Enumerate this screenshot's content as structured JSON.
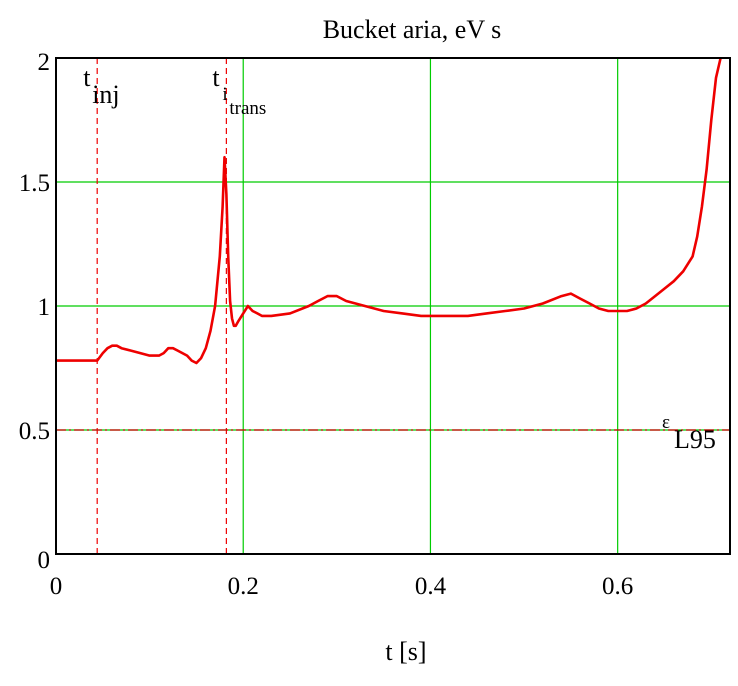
{
  "chart_data": {
    "type": "line",
    "title": "Bucket aria, eV s",
    "xlabel": "t [s]",
    "ylabel": "",
    "xlim": [
      0,
      0.72
    ],
    "ylim": [
      0,
      2
    ],
    "x_ticks": [
      0,
      0.2,
      0.4,
      0.6
    ],
    "x_tick_labels": [
      "0",
      "0.2",
      "0.4",
      "0.6"
    ],
    "y_ticks": [
      0,
      0.5,
      1,
      1.5,
      2
    ],
    "y_tick_labels": [
      "0",
      "0.5",
      "1",
      "1.5",
      "2"
    ],
    "grid": true,
    "grid_color": "#00cc00",
    "series_color": "#ee0000",
    "series": [
      {
        "x": [
          0,
          0.044,
          0.05,
          0.055,
          0.06,
          0.065,
          0.07,
          0.08,
          0.09,
          0.1,
          0.11,
          0.115,
          0.12,
          0.125,
          0.13,
          0.135,
          0.14,
          0.145,
          0.15,
          0.155,
          0.16,
          0.165,
          0.17,
          0.175,
          0.178,
          0.18,
          0.182,
          0.184,
          0.186,
          0.188,
          0.19,
          0.192,
          0.195,
          0.2,
          0.205,
          0.21,
          0.215,
          0.22,
          0.23,
          0.25,
          0.27,
          0.28,
          0.29,
          0.3,
          0.31,
          0.33,
          0.35,
          0.37,
          0.39,
          0.4,
          0.42,
          0.44,
          0.46,
          0.48,
          0.5,
          0.52,
          0.54,
          0.55,
          0.56,
          0.57,
          0.58,
          0.59,
          0.6,
          0.61,
          0.62,
          0.63,
          0.64,
          0.65,
          0.66,
          0.67,
          0.68,
          0.685,
          0.69,
          0.695,
          0.7,
          0.705,
          0.71
        ],
        "y": [
          0.78,
          0.78,
          0.81,
          0.83,
          0.84,
          0.84,
          0.83,
          0.82,
          0.81,
          0.8,
          0.8,
          0.81,
          0.83,
          0.83,
          0.82,
          0.81,
          0.8,
          0.78,
          0.77,
          0.79,
          0.83,
          0.9,
          1.0,
          1.2,
          1.4,
          1.6,
          1.45,
          1.2,
          1.02,
          0.95,
          0.92,
          0.92,
          0.94,
          0.97,
          1.0,
          0.98,
          0.97,
          0.96,
          0.96,
          0.97,
          1.0,
          1.02,
          1.04,
          1.04,
          1.02,
          1.0,
          0.98,
          0.97,
          0.96,
          0.96,
          0.96,
          0.96,
          0.97,
          0.98,
          0.99,
          1.01,
          1.04,
          1.05,
          1.03,
          1.01,
          0.99,
          0.98,
          0.98,
          0.98,
          0.99,
          1.01,
          1.04,
          1.07,
          1.1,
          1.14,
          1.2,
          1.28,
          1.4,
          1.55,
          1.75,
          1.92,
          2.0
        ]
      }
    ],
    "vlines": [
      {
        "x": 0.044,
        "label": "t",
        "sub": "inj"
      },
      {
        "x": 0.182,
        "label": "t",
        "sub": "i",
        "subsub": "trans"
      }
    ],
    "hlines": [
      {
        "y": 0.5,
        "label": "ε",
        "sub": "L95"
      }
    ]
  }
}
